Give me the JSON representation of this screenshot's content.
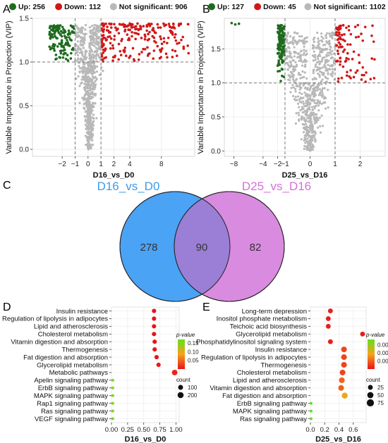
{
  "panels": {
    "A": {
      "letter": "A"
    },
    "B": {
      "letter": "B"
    },
    "C": {
      "letter": "C"
    },
    "D": {
      "letter": "D"
    },
    "E": {
      "letter": "E"
    }
  },
  "colors": {
    "up": "#1e6b1e",
    "down": "#d01818",
    "ns": "#b8b8b8",
    "venn_left": "#4aa3f5",
    "venn_right": "#d98be0",
    "venn_overlap": "#9b7fd6",
    "venn_left_label": "#3d9bea",
    "venn_right_label": "#d56fd9"
  },
  "chart_data": [
    {
      "id": "A",
      "type": "scatter",
      "xlabel": "D16_vs_D0",
      "ylabel": "Variable Importance in Projection (VIP)",
      "xlim": [
        -4.3,
        12.2
      ],
      "ylim": [
        -0.08,
        1.5
      ],
      "xticks": [
        -2,
        -1,
        0,
        1,
        2,
        4,
        8
      ],
      "xtick_labels": [
        "−2",
        "−1",
        "0",
        "1",
        "2",
        "4",
        "8"
      ],
      "yticks": [
        0.0,
        0.5,
        1.0,
        1.5
      ],
      "ytick_labels": [
        "0.0",
        "0.5",
        "1.0",
        "1.5"
      ],
      "thresholds": {
        "x": [
          -1,
          1
        ],
        "y": 1.0
      },
      "legend": [
        {
          "key": "up",
          "label": "Up: 256"
        },
        {
          "key": "down",
          "label": "Down: 112"
        },
        {
          "key": "ns",
          "label": "Not significant: 906"
        }
      ],
      "counts": {
        "up": 256,
        "down": 112,
        "ns": 906
      },
      "point_regions": {
        "up": {
          "x": [
            -3.0,
            -1.05
          ],
          "y": [
            1.0,
            1.42
          ]
        },
        "down": {
          "x": [
            1.05,
            11.5
          ],
          "y": [
            1.0,
            1.44
          ]
        },
        "ns_center": 0.1,
        "ns_tail_min": 0.0
      },
      "grid": true
    },
    {
      "id": "B",
      "type": "scatter",
      "xlabel": "D25_vs_D16",
      "ylabel": "Variable Importance in Projection (VIP)",
      "xlim": [
        -9.3,
        3.0
      ],
      "ylim": [
        -0.08,
        1.95
      ],
      "xticks": [
        -8,
        -4,
        -2,
        -1,
        0,
        1,
        2
      ],
      "xtick_labels": [
        "−8",
        "−4",
        "−2",
        "−1",
        "0",
        "1",
        "2"
      ],
      "yticks": [
        0.0,
        0.5,
        1.0,
        1.5
      ],
      "ytick_labels": [
        "0.0",
        "0.5",
        "1.0",
        "1.5"
      ],
      "thresholds": {
        "x": [
          -1,
          1
        ],
        "y": 1.0
      },
      "legend": [
        {
          "key": "up",
          "label": "Up: 127"
        },
        {
          "key": "down",
          "label": "Down: 45"
        },
        {
          "key": "ns",
          "label": "Not significant: 1102"
        }
      ],
      "counts": {
        "up": 127,
        "down": 45,
        "ns": 1102
      },
      "point_regions": {
        "up": {
          "x": [
            -2.0,
            -1.05
          ],
          "y": [
            1.0,
            1.85
          ]
        },
        "up_outliers": [
          [
            -8.3,
            1.88
          ],
          [
            -7.8,
            1.86
          ],
          [
            -7.3,
            1.87
          ]
        ],
        "down": {
          "x": [
            1.05,
            2.6
          ],
          "y": [
            1.0,
            1.85
          ]
        },
        "ns_center": 0.0,
        "ns_tail_min": 0.0
      },
      "grid": true
    },
    {
      "id": "C",
      "type": "venn",
      "sets": [
        {
          "name": "D16_vs_D0",
          "only": 278
        },
        {
          "name": "D25_vs_D16",
          "only": 82
        }
      ],
      "overlap": 90
    },
    {
      "id": "D",
      "type": "scatter",
      "subtype": "dotplot",
      "xlabel": "D16_vs_D0",
      "xlim": [
        0.0,
        1.05
      ],
      "xticks": [
        0.0,
        0.25,
        0.5,
        0.75,
        1.0
      ],
      "xtick_labels": [
        "0.00",
        "0.25",
        "0.50",
        "0.75",
        "1.00"
      ],
      "categories": [
        "Insulin resistance",
        "Regulation of lipolysis in adipocytes",
        "Lipid and atherosclerosis",
        "Cholesterol metabolism",
        "Vitamin digestion and absorption",
        "Thermogenesis",
        "Fat digestion and absorption",
        "Glycerolipid metabolism",
        "Metabolic pathways",
        "Apelin signaling pathway",
        "ErbB signaling pathway",
        "MAPK signaling pathway",
        "Rap1 signaling pathway",
        "Ras signaling pathway",
        "VEGF signaling pathway"
      ],
      "x": [
        0.66,
        0.66,
        0.66,
        0.66,
        0.67,
        0.67,
        0.7,
        0.73,
        0.98,
        0.02,
        0.02,
        0.02,
        0.02,
        0.02,
        0.02
      ],
      "count": [
        60,
        60,
        60,
        60,
        60,
        60,
        60,
        60,
        150,
        5,
        5,
        5,
        5,
        5,
        5
      ],
      "pvalue": [
        0.001,
        0.001,
        0.001,
        0.001,
        0.001,
        0.001,
        0.002,
        0.003,
        0.01,
        0.15,
        0.15,
        0.15,
        0.15,
        0.15,
        0.15
      ],
      "colorbar": {
        "title": "p-value",
        "ticks": [
          0.15,
          0.1,
          0.05
        ],
        "tick_labels": [
          "0.15",
          "0.10",
          "0.05"
        ],
        "range": [
          0.0,
          0.17
        ],
        "low_color": "#e8121b",
        "mid_color": "#f7a21b",
        "high_color": "#63e01e"
      },
      "size_legend": {
        "title": "count",
        "values": [
          100,
          200
        ],
        "labels": [
          "100",
          "200"
        ]
      }
    },
    {
      "id": "E",
      "type": "scatter",
      "subtype": "dotplot",
      "xlabel": "D25_vs_D16",
      "xlim": [
        0.0,
        0.78
      ],
      "xticks": [
        0.0,
        0.2,
        0.4,
        0.6
      ],
      "xtick_labels": [
        "0.0",
        "0.2",
        "0.4",
        "0.6"
      ],
      "categories": [
        "Long-term depression",
        "Inositol phosphate metabolism",
        "Teichoic acid biosynthesis",
        "Glycerolipid metabolism",
        "Phosphatidylinositol signaling system",
        "Insulin resistance",
        "Regulation of lipolysis in adipocytes",
        "Thermogenesis",
        "Cholesterol metabolism",
        "Lipid and atherosclerosis",
        "Vitamin digestion and absorption",
        "Fat digestion and absorption",
        "ErbB signaling pathway",
        "MAPK signaling pathway",
        "Ras signaling pathway"
      ],
      "x": [
        0.28,
        0.25,
        0.25,
        0.73,
        0.28,
        0.47,
        0.47,
        0.47,
        0.45,
        0.44,
        0.43,
        0.48,
        0.01,
        0.01,
        0.01
      ],
      "count": [
        25,
        25,
        25,
        25,
        25,
        40,
        40,
        40,
        40,
        40,
        40,
        45,
        3,
        3,
        3
      ],
      "pvalue": [
        0.0005,
        0.0005,
        0.0005,
        0.0005,
        0.0005,
        0.002,
        0.002,
        0.002,
        0.002,
        0.003,
        0.003,
        0.006,
        0.011,
        0.011,
        0.011
      ],
      "colorbar": {
        "title": "p-value",
        "ticks": [
          0.009,
          0.006,
          0.003
        ],
        "tick_labels": [
          "0.009",
          "0.006",
          "0.003"
        ],
        "range": [
          0.0,
          0.011
        ],
        "low_color": "#e8121b",
        "mid_color": "#f7a21b",
        "high_color": "#63e01e"
      },
      "size_legend": {
        "title": "count",
        "values": [
          25,
          50,
          75
        ],
        "labels": [
          "25",
          "50",
          "75"
        ]
      }
    }
  ]
}
